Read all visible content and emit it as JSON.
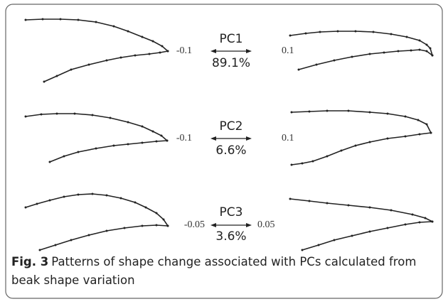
{
  "rows": [
    {
      "pc": "PC1",
      "left": "-0.1",
      "right": "0.1",
      "variance": "89.1%"
    },
    {
      "pc": "PC2",
      "left": "-0.1",
      "right": "0.1",
      "variance": "6.6%"
    },
    {
      "pc": "PC3",
      "left": "-0.05",
      "right": "0.05",
      "variance": "3.6%"
    }
  ],
  "caption": {
    "label": "Fig. 3",
    "text": "Patterns of shape change associated with PCs calculated from beak shape variation"
  }
}
